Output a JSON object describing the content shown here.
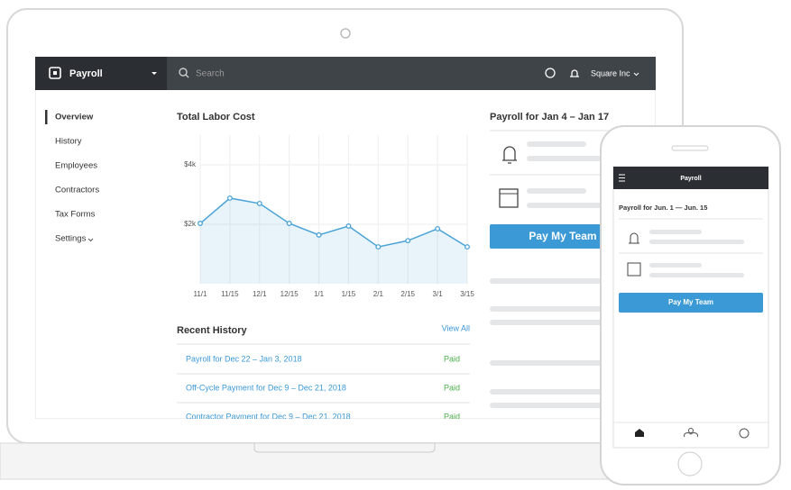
{
  "topbar": {
    "brand": "Payroll",
    "search": "Search",
    "company": "Square Inc"
  },
  "sidebar": [
    "Overview",
    "History",
    "Employees",
    "Contractors",
    "Tax Forms",
    "Settings"
  ],
  "chart_data": {
    "type": "line",
    "title": "Total Labor Cost",
    "categories": [
      "11/1",
      "11/15",
      "12/1",
      "12/15",
      "1/1",
      "1/15",
      "2/1",
      "2/15",
      "3/1",
      "3/15"
    ],
    "series": [
      {
        "color": "#4aa3d6",
        "values": [
          2030,
          2880,
          2700,
          2030,
          1640,
          1940,
          1240,
          1450,
          1850,
          1240
        ]
      }
    ],
    "ylim": [
      0,
      5000
    ],
    "yticks": [
      {
        "value": 2000,
        "label": "$2k"
      },
      {
        "value": 4000,
        "label": "$4k"
      }
    ],
    "grid": true
  },
  "recent_history": {
    "title": "Recent History",
    "link": "View All",
    "rows": [
      {
        "label": "Payroll for Dec 22 – Jan 3, 2018",
        "status": "Paid"
      },
      {
        "label": "Off-Cycle Payment for Dec 9 – Dec 21, 2018",
        "status": "Paid"
      },
      {
        "label": "Contractor Payment for Dec 9 – Dec 21, 2018",
        "status": "Paid"
      }
    ]
  },
  "payroll_panel": {
    "title": "Payroll for Jan 4 – Jan 17",
    "button": "Pay My Team"
  },
  "phone": {
    "title": "Payroll",
    "subtitle": "Payroll for Jun. 1 — Jun. 15",
    "button": "Pay My Team"
  }
}
